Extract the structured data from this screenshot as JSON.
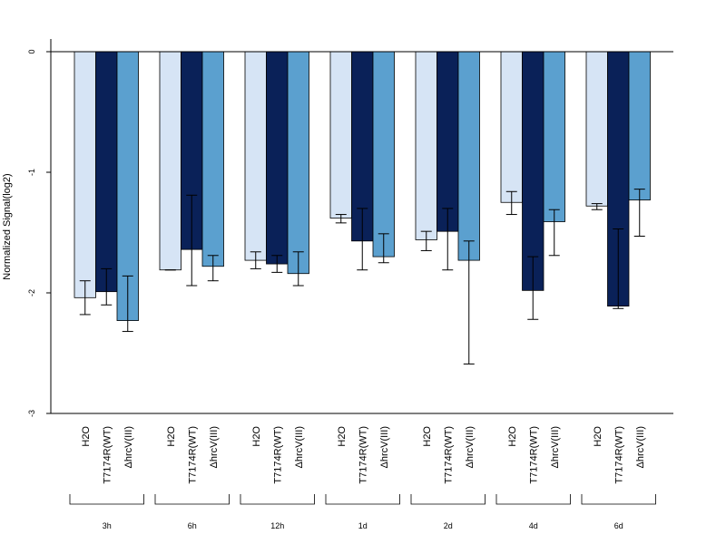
{
  "chart_data": {
    "type": "bar",
    "title": "",
    "xlabel": "",
    "ylabel": "Normalized Signal(log2)",
    "ylim": [
      -3,
      0
    ],
    "yticks": [
      "0",
      "-1",
      "-2",
      "-3"
    ],
    "grid": false,
    "legend": "none",
    "series_names": [
      "H2O",
      "T7174R(WT)",
      "ΔhrcV(III)"
    ],
    "series_colors": [
      "#d6e4f5",
      "#0a2158",
      "#5ba0cf"
    ],
    "groups": [
      {
        "label": "3h",
        "values": [
          -2.04,
          -1.99,
          -2.23
        ],
        "err_low": [
          -2.18,
          -2.1,
          -2.32
        ],
        "err_high": [
          -1.9,
          -1.8,
          -1.86
        ]
      },
      {
        "label": "6h",
        "values": [
          -1.81,
          -1.64,
          -1.78
        ],
        "err_low": [
          -1.81,
          -1.94,
          -1.9
        ],
        "err_high": [
          -1.81,
          -1.19,
          -1.69
        ]
      },
      {
        "label": "12h",
        "values": [
          -1.73,
          -1.76,
          -1.84
        ],
        "err_low": [
          -1.8,
          -1.83,
          -1.94
        ],
        "err_high": [
          -1.66,
          -1.69,
          -1.66
        ]
      },
      {
        "label": "1d",
        "values": [
          -1.38,
          -1.57,
          -1.7
        ],
        "err_low": [
          -1.42,
          -1.81,
          -1.75
        ],
        "err_high": [
          -1.35,
          -1.3,
          -1.51
        ]
      },
      {
        "label": "2d",
        "values": [
          -1.56,
          -1.49,
          -1.73
        ],
        "err_low": [
          -1.65,
          -1.81,
          -2.59
        ],
        "err_high": [
          -1.49,
          -1.3,
          -1.57
        ]
      },
      {
        "label": "4d",
        "values": [
          -1.25,
          -1.98,
          -1.41
        ],
        "err_low": [
          -1.35,
          -2.22,
          -1.69
        ],
        "err_high": [
          -1.16,
          -1.7,
          -1.31
        ]
      },
      {
        "label": "6d",
        "values": [
          -1.28,
          -2.11,
          -1.23
        ],
        "err_low": [
          -1.31,
          -2.13,
          -1.53
        ],
        "err_high": [
          -1.26,
          -1.47,
          -1.14
        ]
      }
    ]
  }
}
